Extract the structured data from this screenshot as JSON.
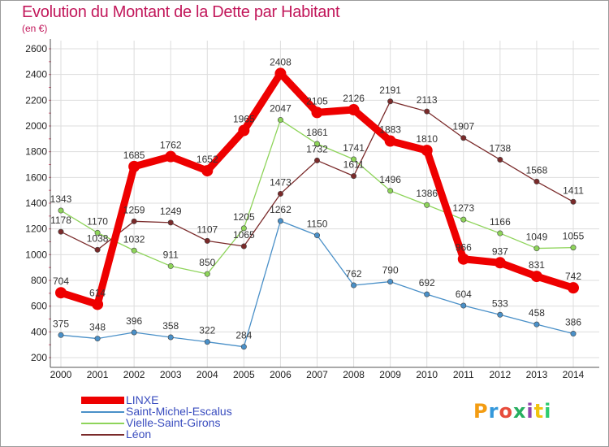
{
  "title": "Evolution du Montant de la Dette par Habitant",
  "unit": "(en €)",
  "logo": "Proxiti",
  "colors": {
    "title": "#c2185b",
    "grid": "#dddddd",
    "axis": "#555555",
    "tick_mark": "#e06080",
    "legend_text": "#3a4dbf"
  },
  "chart_data": {
    "type": "line",
    "title": "Evolution du Montant de la Dette par Habitant",
    "subtitle": "(en €)",
    "xlabel": "",
    "ylabel": "",
    "x": [
      "2000",
      "2001",
      "2002",
      "2003",
      "2004",
      "2005",
      "2006",
      "2007",
      "2008",
      "2009",
      "2010",
      "2011",
      "2012",
      "2013",
      "2014"
    ],
    "ylim": [
      200,
      2600
    ],
    "yticks": [
      200,
      400,
      600,
      800,
      1000,
      1200,
      1400,
      1600,
      1800,
      2000,
      2200,
      2400,
      2600
    ],
    "grid": true,
    "legend_position": "bottom-left",
    "series": [
      {
        "name": "LINXE",
        "color": "#ee0000",
        "highlight": true,
        "values": [
          704,
          614,
          1685,
          1762,
          1652,
          1965,
          2408,
          2105,
          2126,
          1883,
          1810,
          966,
          937,
          831,
          742
        ],
        "labels": [
          "704",
          "614",
          "1685",
          "1762",
          "1652",
          "1965",
          "2408",
          "2105",
          "2126",
          "1883",
          "1810",
          "966",
          "937",
          "831",
          "742"
        ]
      },
      {
        "name": "Saint-Michel-Escalus",
        "color": "#4a90c8",
        "values": [
          375,
          348,
          396,
          358,
          322,
          284,
          1262,
          1150,
          762,
          790,
          692,
          604,
          533,
          458,
          386
        ],
        "labels": [
          "375",
          "348",
          "396",
          "358",
          "322",
          "284",
          "1262",
          "1150",
          "762",
          "790",
          "692",
          "604",
          "533",
          "458",
          "386"
        ]
      },
      {
        "name": "Vielle-Saint-Girons",
        "color": "#8ed45a",
        "values": [
          1343,
          1170,
          1032,
          911,
          850,
          1205,
          2047,
          1861,
          1741,
          1496,
          1386,
          1273,
          1166,
          1049,
          1055
        ],
        "labels": [
          "1343",
          "1170",
          "1032",
          "911",
          "850",
          "1205",
          "2047",
          "1861",
          "1741",
          "1496",
          "1386",
          "1273",
          "1166",
          "1049",
          "1055"
        ]
      },
      {
        "name": "Léon",
        "color": "#7a2a2a",
        "values": [
          1178,
          1038,
          1259,
          1249,
          1107,
          1065,
          1473,
          1732,
          1611,
          2191,
          2113,
          1907,
          1738,
          1568,
          1411
        ],
        "labels": [
          "1178",
          "1038",
          "1259",
          "1249",
          "1107",
          "1065",
          "1473",
          "1732",
          "1611",
          "2191",
          "2113",
          "1907",
          "1738",
          "1568",
          "1411"
        ]
      }
    ]
  }
}
